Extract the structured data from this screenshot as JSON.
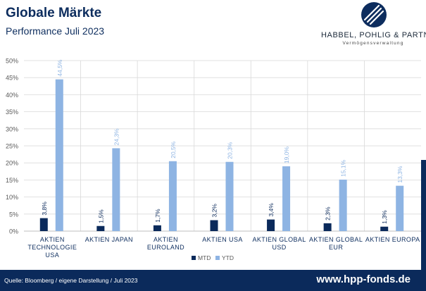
{
  "header": {
    "title": "Globale Märkte",
    "subtitle": "Performance Juli 2023"
  },
  "logo": {
    "name": "HABBEL, POHLIG & PARTNER",
    "tagline": "Vermögensverwaltung",
    "color": "#0d2d5e"
  },
  "footer": {
    "source": "Quelle: Bloomberg / eigene Darstellung / Juli 2023",
    "url": "www.hpp-fonds.de",
    "background": "#0b2a5b"
  },
  "chart_data": {
    "type": "bar",
    "categories": [
      [
        "AKTIEN",
        "TECHNOLOGIE",
        "USA"
      ],
      [
        "AKTIEN JAPAN"
      ],
      [
        "AKTIEN",
        "EUROLAND"
      ],
      [
        "AKTIEN USA"
      ],
      [
        "AKTIEN GLOBAL",
        "USD"
      ],
      [
        "AKTIEN GLOBAL",
        "EUR"
      ],
      [
        "AKTIEN EUROPA"
      ]
    ],
    "series": [
      {
        "name": "MTD",
        "color": "#0b2a5b",
        "values": [
          3.8,
          1.5,
          1.7,
          3.2,
          3.4,
          2.3,
          1.3
        ],
        "labels": [
          "3,8%",
          "1,5%",
          "1,7%",
          "3,2%",
          "3,4%",
          "2,3%",
          "1,3%"
        ]
      },
      {
        "name": "YTD",
        "color": "#8eb4e3",
        "values": [
          44.5,
          24.3,
          20.5,
          20.3,
          19.0,
          15.1,
          13.3
        ],
        "labels": [
          "44,5%",
          "24,3%",
          "20,5%",
          "20,3%",
          "19,0%",
          "15,1%",
          "13,3%"
        ]
      }
    ],
    "ylim": [
      0,
      50
    ],
    "yticks": [
      "0%",
      "5%",
      "10%",
      "15%",
      "20%",
      "25%",
      "30%",
      "35%",
      "40%",
      "45%",
      "50%"
    ],
    "gridlines": true,
    "category_separators": true,
    "legend_position": "bottom"
  }
}
